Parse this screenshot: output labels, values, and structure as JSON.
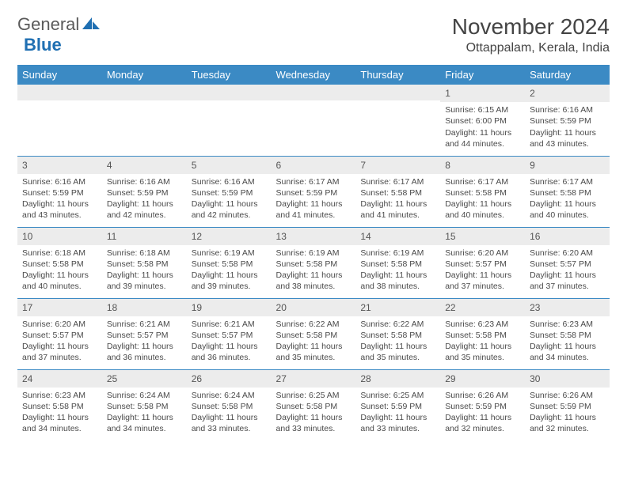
{
  "brand": {
    "part1": "General",
    "part2": "Blue"
  },
  "title": "November 2024",
  "location": "Ottappalam, Kerala, India",
  "colors": {
    "header_bg": "#3b8ac4",
    "header_text": "#ffffff",
    "daynum_bg": "#ececec",
    "row_border": "#3b8ac4",
    "text": "#4a4a4a",
    "brand_gray": "#5a5a5a",
    "brand_blue": "#1f6fb2"
  },
  "weekdays": [
    "Sunday",
    "Monday",
    "Tuesday",
    "Wednesday",
    "Thursday",
    "Friday",
    "Saturday"
  ],
  "weeks": [
    [
      null,
      null,
      null,
      null,
      null,
      {
        "n": "1",
        "sunrise": "6:15 AM",
        "sunset": "6:00 PM",
        "daylight": "11 hours and 44 minutes."
      },
      {
        "n": "2",
        "sunrise": "6:16 AM",
        "sunset": "5:59 PM",
        "daylight": "11 hours and 43 minutes."
      }
    ],
    [
      {
        "n": "3",
        "sunrise": "6:16 AM",
        "sunset": "5:59 PM",
        "daylight": "11 hours and 43 minutes."
      },
      {
        "n": "4",
        "sunrise": "6:16 AM",
        "sunset": "5:59 PM",
        "daylight": "11 hours and 42 minutes."
      },
      {
        "n": "5",
        "sunrise": "6:16 AM",
        "sunset": "5:59 PM",
        "daylight": "11 hours and 42 minutes."
      },
      {
        "n": "6",
        "sunrise": "6:17 AM",
        "sunset": "5:59 PM",
        "daylight": "11 hours and 41 minutes."
      },
      {
        "n": "7",
        "sunrise": "6:17 AM",
        "sunset": "5:58 PM",
        "daylight": "11 hours and 41 minutes."
      },
      {
        "n": "8",
        "sunrise": "6:17 AM",
        "sunset": "5:58 PM",
        "daylight": "11 hours and 40 minutes."
      },
      {
        "n": "9",
        "sunrise": "6:17 AM",
        "sunset": "5:58 PM",
        "daylight": "11 hours and 40 minutes."
      }
    ],
    [
      {
        "n": "10",
        "sunrise": "6:18 AM",
        "sunset": "5:58 PM",
        "daylight": "11 hours and 40 minutes."
      },
      {
        "n": "11",
        "sunrise": "6:18 AM",
        "sunset": "5:58 PM",
        "daylight": "11 hours and 39 minutes."
      },
      {
        "n": "12",
        "sunrise": "6:19 AM",
        "sunset": "5:58 PM",
        "daylight": "11 hours and 39 minutes."
      },
      {
        "n": "13",
        "sunrise": "6:19 AM",
        "sunset": "5:58 PM",
        "daylight": "11 hours and 38 minutes."
      },
      {
        "n": "14",
        "sunrise": "6:19 AM",
        "sunset": "5:58 PM",
        "daylight": "11 hours and 38 minutes."
      },
      {
        "n": "15",
        "sunrise": "6:20 AM",
        "sunset": "5:57 PM",
        "daylight": "11 hours and 37 minutes."
      },
      {
        "n": "16",
        "sunrise": "6:20 AM",
        "sunset": "5:57 PM",
        "daylight": "11 hours and 37 minutes."
      }
    ],
    [
      {
        "n": "17",
        "sunrise": "6:20 AM",
        "sunset": "5:57 PM",
        "daylight": "11 hours and 37 minutes."
      },
      {
        "n": "18",
        "sunrise": "6:21 AM",
        "sunset": "5:57 PM",
        "daylight": "11 hours and 36 minutes."
      },
      {
        "n": "19",
        "sunrise": "6:21 AM",
        "sunset": "5:57 PM",
        "daylight": "11 hours and 36 minutes."
      },
      {
        "n": "20",
        "sunrise": "6:22 AM",
        "sunset": "5:58 PM",
        "daylight": "11 hours and 35 minutes."
      },
      {
        "n": "21",
        "sunrise": "6:22 AM",
        "sunset": "5:58 PM",
        "daylight": "11 hours and 35 minutes."
      },
      {
        "n": "22",
        "sunrise": "6:23 AM",
        "sunset": "5:58 PM",
        "daylight": "11 hours and 35 minutes."
      },
      {
        "n": "23",
        "sunrise": "6:23 AM",
        "sunset": "5:58 PM",
        "daylight": "11 hours and 34 minutes."
      }
    ],
    [
      {
        "n": "24",
        "sunrise": "6:23 AM",
        "sunset": "5:58 PM",
        "daylight": "11 hours and 34 minutes."
      },
      {
        "n": "25",
        "sunrise": "6:24 AM",
        "sunset": "5:58 PM",
        "daylight": "11 hours and 34 minutes."
      },
      {
        "n": "26",
        "sunrise": "6:24 AM",
        "sunset": "5:58 PM",
        "daylight": "11 hours and 33 minutes."
      },
      {
        "n": "27",
        "sunrise": "6:25 AM",
        "sunset": "5:58 PM",
        "daylight": "11 hours and 33 minutes."
      },
      {
        "n": "28",
        "sunrise": "6:25 AM",
        "sunset": "5:59 PM",
        "daylight": "11 hours and 33 minutes."
      },
      {
        "n": "29",
        "sunrise": "6:26 AM",
        "sunset": "5:59 PM",
        "daylight": "11 hours and 32 minutes."
      },
      {
        "n": "30",
        "sunrise": "6:26 AM",
        "sunset": "5:59 PM",
        "daylight": "11 hours and 32 minutes."
      }
    ]
  ],
  "labels": {
    "sunrise": "Sunrise:",
    "sunset": "Sunset:",
    "daylight": "Daylight:"
  }
}
